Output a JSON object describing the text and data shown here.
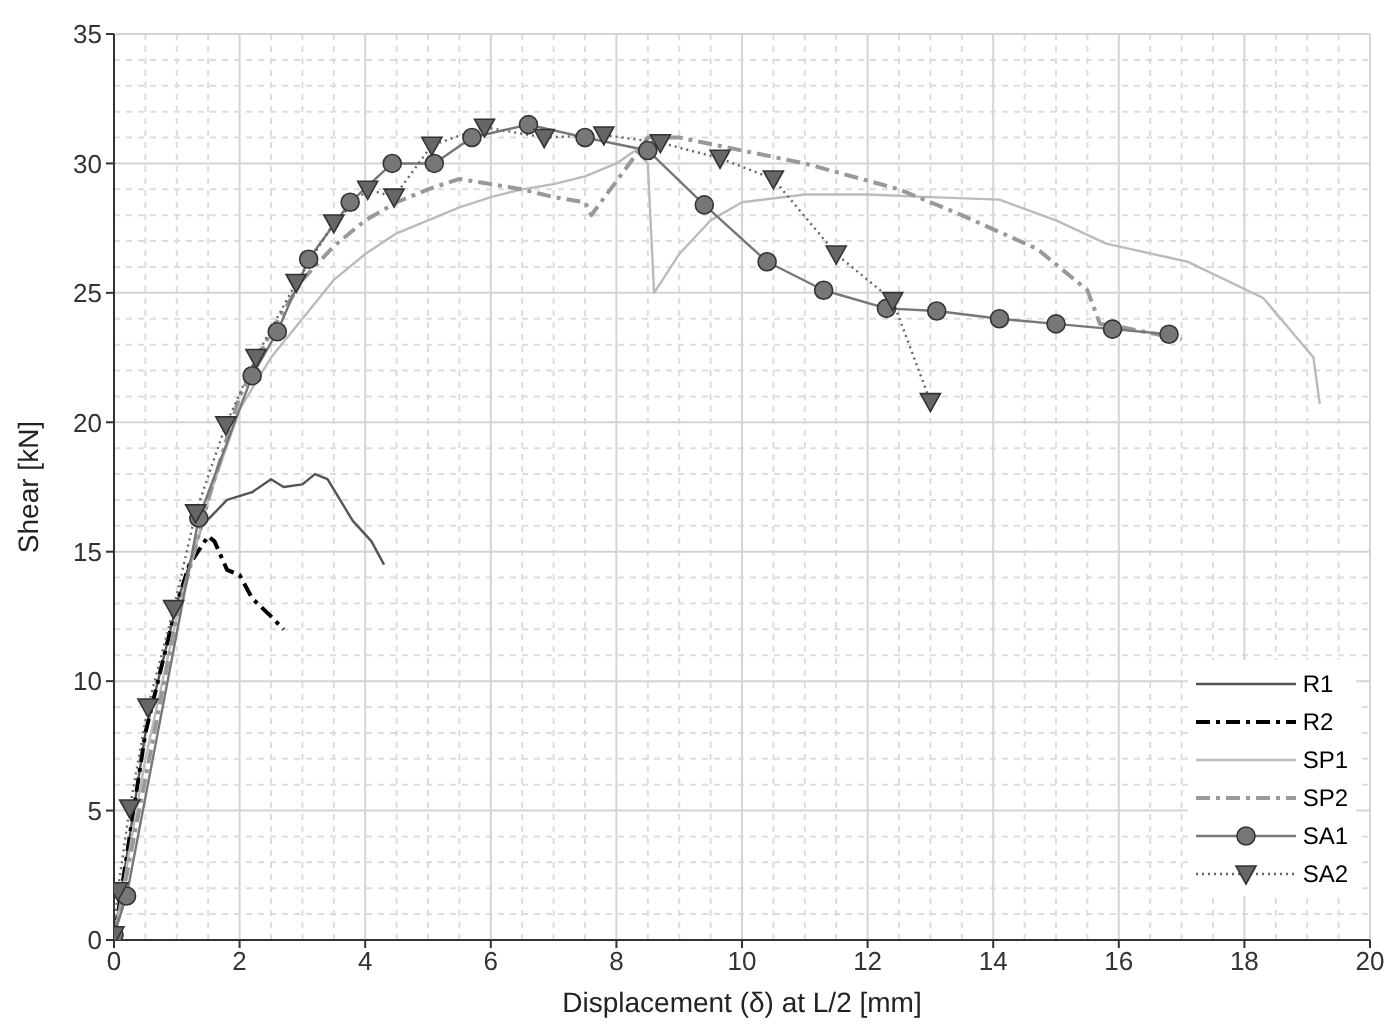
{
  "chart_data": {
    "type": "line",
    "xlabel": "Displacement (δ) at L/2 [mm]",
    "ylabel": "Shear [kN]",
    "xlim": [
      0,
      20
    ],
    "xticks": [
      0,
      2,
      4,
      6,
      8,
      10,
      12,
      14,
      16,
      18,
      20
    ],
    "ylim": [
      0,
      35
    ],
    "yticks": [
      0,
      5,
      10,
      15,
      20,
      25,
      30,
      35
    ],
    "grid": true,
    "legend": "bottom right",
    "series": [
      {
        "name": "R1",
        "color": "#555555",
        "line_style": "solid",
        "marker": "none",
        "x": [
          0,
          0.5,
          1.0,
          1.4,
          1.8,
          2.2,
          2.5,
          2.7,
          3.0,
          3.2,
          3.4,
          3.6,
          3.8,
          4.1,
          4.3
        ],
        "values": [
          0,
          8,
          13,
          16,
          17,
          17.3,
          17.8,
          17.5,
          17.6,
          18,
          17.8,
          17,
          16.2,
          15.4,
          14.5
        ]
      },
      {
        "name": "R2",
        "color": "#000000",
        "line_style": "dashed",
        "marker": "none",
        "x": [
          0,
          0.5,
          1.0,
          1.2,
          1.5,
          1.6,
          1.8,
          2.0,
          2.2,
          2.5,
          2.7
        ],
        "values": [
          0,
          8,
          13,
          14.5,
          15.6,
          15.4,
          14.3,
          14.1,
          13.2,
          12.5,
          12
        ]
      },
      {
        "name": "SP1",
        "color": "#bbbbbb",
        "line_style": "solid",
        "marker": "none",
        "x": [
          0,
          0.5,
          1,
          1.5,
          2,
          2.5,
          3,
          3.5,
          4,
          4.5,
          5,
          5.5,
          6,
          6.5,
          7,
          7.5,
          8,
          8.3,
          8.5,
          8.6,
          9,
          9.5,
          10,
          11,
          12,
          13,
          14.1,
          15,
          15.8,
          17.1,
          18.3,
          19.1,
          19.2
        ],
        "values": [
          0,
          7,
          12.5,
          17,
          20.5,
          22.5,
          24,
          25.5,
          26.5,
          27.3,
          27.8,
          28.3,
          28.7,
          29,
          29.2,
          29.5,
          30,
          30.5,
          30,
          25,
          26.5,
          27.8,
          28.5,
          28.8,
          28.8,
          28.7,
          28.6,
          27.8,
          26.9,
          26.2,
          24.8,
          22.5,
          20.7
        ]
      },
      {
        "name": "SP2",
        "color": "#999999",
        "line_style": "dashed",
        "marker": "none",
        "x": [
          0,
          1,
          1.5,
          2,
          2.5,
          3,
          3.5,
          4,
          4.5,
          5,
          5.5,
          6,
          6.5,
          7,
          7.5,
          7.6,
          8.3,
          8.5,
          9,
          10,
          11,
          12.5,
          13.5,
          14.7,
          15.5,
          15.7,
          16,
          17
        ],
        "values": [
          0,
          12.5,
          17,
          21,
          23.5,
          25.5,
          26.8,
          27.8,
          28.5,
          29,
          29.4,
          29.2,
          29,
          28.7,
          28.5,
          28,
          30.3,
          31,
          31,
          30.5,
          30,
          29,
          28,
          26.7,
          25.1,
          23.8,
          23.7,
          23.2
        ]
      },
      {
        "name": "SA1",
        "color": "#777777",
        "line_style": "solid",
        "marker": "circle",
        "x": [
          0,
          0.2,
          1.35,
          2.2,
          2.6,
          3.1,
          3.76,
          4.43,
          5.1,
          5.7,
          6.6,
          7.5,
          8.5,
          9.4,
          10.4,
          11.3,
          12.3,
          13.1,
          14.1,
          15,
          15.9,
          16.8
        ],
        "values": [
          0.2,
          1.7,
          16.3,
          21.8,
          23.5,
          26.3,
          28.5,
          30,
          30,
          31,
          31.5,
          31,
          30.5,
          28.4,
          26.2,
          25.1,
          24.4,
          24.3,
          24,
          23.8,
          23.6,
          23.4
        ]
      },
      {
        "name": "SA2",
        "color": "#666666",
        "line_style": "dotted",
        "marker": "triangle",
        "x": [
          0,
          0.06,
          0.25,
          0.54,
          0.95,
          1.3,
          1.78,
          2.26,
          2.9,
          3.5,
          4.04,
          4.46,
          5.06,
          5.9,
          6.85,
          7.8,
          8.7,
          9.65,
          10.5,
          11.5,
          12.4,
          13
        ],
        "values": [
          0.2,
          1.9,
          5.1,
          9,
          12.8,
          16.5,
          19.9,
          22.5,
          25.4,
          27.7,
          29,
          28.7,
          30.7,
          31.4,
          31,
          31.1,
          30.8,
          30.2,
          29.4,
          26.5,
          24.7,
          20.8
        ]
      }
    ]
  }
}
